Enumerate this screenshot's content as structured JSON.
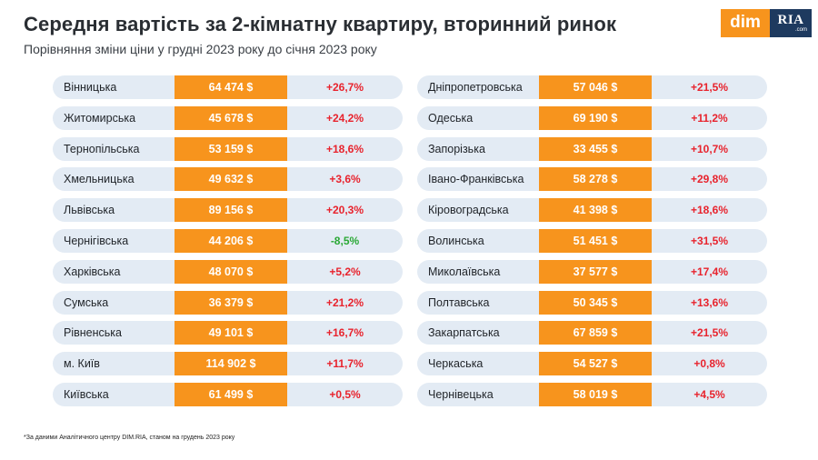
{
  "header": {
    "title": "Середня вартість за 2-кімнатну квартиру, вторинний ринок",
    "subtitle": "Порівняння зміни ціни у грудні 2023 року до січня 2023 року"
  },
  "logo": {
    "dim": "dim",
    "ria": "RIA",
    "com": ".com"
  },
  "colors": {
    "accent": "#f7941d",
    "row_bg": "#e3ebf4",
    "increase": "#e8232d",
    "decrease": "#2aa835",
    "brand_dark": "#1e3a5f"
  },
  "left_rows": [
    {
      "name": "Вінницька",
      "price": "64 474 $",
      "change": "+26,7%"
    },
    {
      "name": "Житомирська",
      "price": "45 678 $",
      "change": "+24,2%"
    },
    {
      "name": "Тернопільська",
      "price": "53 159 $",
      "change": "+18,6%"
    },
    {
      "name": "Хмельницька",
      "price": "49 632 $",
      "change": "+3,6%"
    },
    {
      "name": "Львівська",
      "price": "89 156 $",
      "change": "+20,3%"
    },
    {
      "name": "Чернігівська",
      "price": "44 206 $",
      "change": "-8,5%"
    },
    {
      "name": "Харківська",
      "price": "48 070 $",
      "change": "+5,2%"
    },
    {
      "name": "Сумська",
      "price": "36 379 $",
      "change": "+21,2%"
    },
    {
      "name": "Рівненська",
      "price": "49 101 $",
      "change": "+16,7%"
    },
    {
      "name": "м. Київ",
      "price": "114 902 $",
      "change": "+11,7%"
    },
    {
      "name": "Київська",
      "price": "61 499 $",
      "change": "+0,5%"
    }
  ],
  "right_rows": [
    {
      "name": "Дніпропетровська",
      "price": "57 046 $",
      "change": "+21,5%"
    },
    {
      "name": "Одеська",
      "price": "69 190 $",
      "change": "+11,2%"
    },
    {
      "name": "Запорізька",
      "price": "33 455 $",
      "change": "+10,7%"
    },
    {
      "name": "Івано-Франківська",
      "price": "58 278 $",
      "change": "+29,8%"
    },
    {
      "name": "Кіровоградська",
      "price": "41 398 $",
      "change": "+18,6%"
    },
    {
      "name": "Волинська",
      "price": "51 451 $",
      "change": "+31,5%"
    },
    {
      "name": "Миколаївська",
      "price": "37 577 $",
      "change": "+17,4%"
    },
    {
      "name": "Полтавська",
      "price": "50 345 $",
      "change": "+13,6%"
    },
    {
      "name": "Закарпатська",
      "price": "67 859 $",
      "change": "+21,5%"
    },
    {
      "name": "Черкаська",
      "price": "54 527 $",
      "change": "+0,8%"
    },
    {
      "name": "Чернівецька",
      "price": "58 019 $",
      "change": "+4,5%"
    }
  ],
  "footnote": "*За даними Аналітичного центру DIM.RIA, станом на грудень 2023 року"
}
